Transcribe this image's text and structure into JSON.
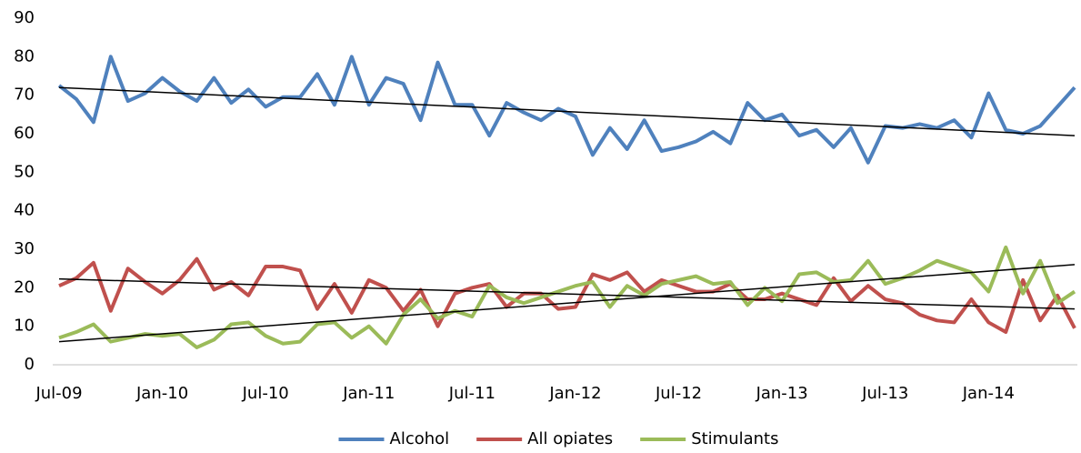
{
  "chart_data": {
    "type": "line",
    "categories": [
      "Jul-09",
      null,
      null,
      null,
      null,
      null,
      "Jan-10",
      null,
      null,
      null,
      null,
      null,
      "Jul-10",
      null,
      null,
      null,
      null,
      null,
      "Jan-11",
      null,
      null,
      null,
      null,
      null,
      "Jul-11",
      null,
      null,
      null,
      null,
      null,
      "Jan-12",
      null,
      null,
      null,
      null,
      null,
      "Jul-12",
      null,
      null,
      null,
      null,
      null,
      "Jan-13",
      null,
      null,
      null,
      null,
      null,
      "Jul-13",
      null,
      null,
      null,
      null,
      null,
      "Jan-14",
      null,
      null,
      null,
      null,
      null
    ],
    "series": [
      {
        "name": "Alcohol",
        "color": "#4f81bd",
        "values": [
          72.5,
          69,
          63,
          80,
          68.5,
          70.5,
          74.5,
          71,
          68.5,
          74.5,
          68,
          71.5,
          67,
          69.5,
          69.5,
          75.5,
          67.5,
          80,
          67.5,
          74.5,
          73,
          63.5,
          78.5,
          67.5,
          67.5,
          59.5,
          68,
          65.5,
          63.5,
          66.5,
          64.5,
          54.5,
          61.5,
          56,
          63.5,
          55.5,
          56.5,
          58,
          60.5,
          57.5,
          68,
          63.5,
          65,
          59.5,
          61,
          56.5,
          61.5,
          52.5,
          62,
          61.5,
          62.5,
          61.5,
          63.5,
          59,
          70.5,
          61,
          60,
          62,
          67,
          72
        ]
      },
      {
        "name": "All opiates",
        "color": "#c0504d",
        "values": [
          20.5,
          22.5,
          26.5,
          14,
          25,
          21.5,
          18.5,
          22,
          27.5,
          19.5,
          21.5,
          18,
          25.5,
          25.5,
          24.5,
          14.5,
          21,
          13.5,
          22,
          20,
          14,
          19.5,
          10,
          18.5,
          20,
          21,
          15,
          18.5,
          18.5,
          14.5,
          15,
          23.5,
          22,
          24,
          19,
          22,
          20.5,
          19,
          19,
          21,
          17,
          17,
          18.5,
          17,
          15.5,
          22.5,
          16.5,
          20.5,
          17,
          16,
          13,
          11.5,
          11,
          17,
          11,
          8.5,
          22,
          11.5,
          18,
          9.5
        ]
      },
      {
        "name": "Stimulants",
        "color": "#9bbb59",
        "values": [
          7,
          8.5,
          10.5,
          6,
          7,
          8,
          7.5,
          8,
          4.5,
          6.5,
          10.5,
          11,
          7.5,
          5.5,
          6,
          10.5,
          11,
          7,
          10,
          5.5,
          13,
          17,
          12,
          14,
          12.5,
          20.5,
          17.5,
          16,
          17.5,
          19,
          20.5,
          21.5,
          15,
          20.5,
          18,
          21,
          22,
          23,
          21,
          21.5,
          15.5,
          20,
          16.5,
          23.5,
          24,
          21.5,
          22,
          27,
          21,
          22.5,
          24.5,
          27,
          25.5,
          24,
          19,
          30.5,
          18.5,
          27,
          16,
          19
        ]
      }
    ],
    "trendlines": [
      [
        72,
        59.5
      ],
      [
        22.3,
        14.5
      ],
      [
        6,
        26
      ]
    ],
    "trendline_color": "#000000",
    "ylim": [
      0,
      90
    ],
    "yticks": [
      0,
      10,
      20,
      30,
      40,
      50,
      60,
      70,
      80,
      90
    ],
    "grid": false,
    "legend": "bottom"
  }
}
